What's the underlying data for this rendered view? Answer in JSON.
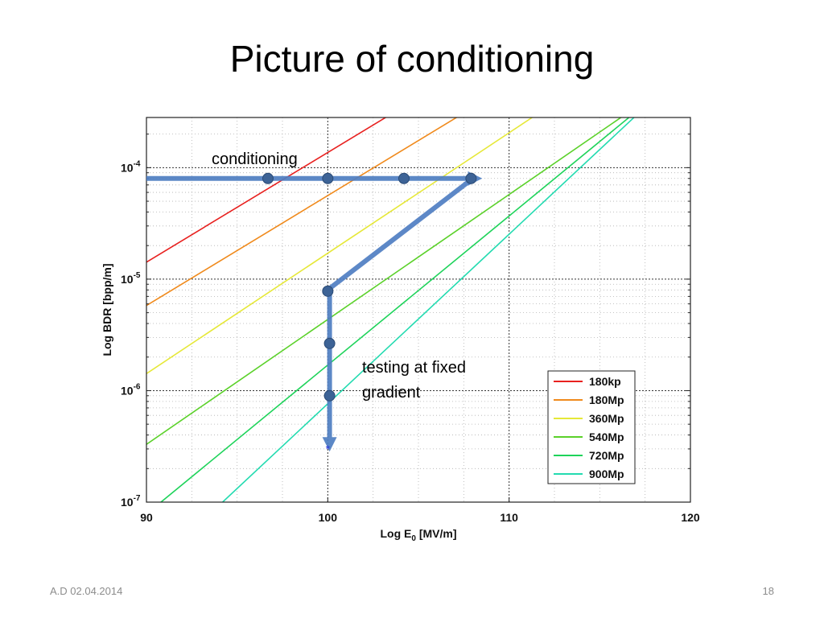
{
  "slide": {
    "title": "Picture of conditioning",
    "footer_left": "A.D 02.04.2014",
    "page_number": "18"
  },
  "chart_data": {
    "type": "line",
    "xlabel_base": "Log E",
    "xlabel_sub": "0",
    "xlabel_unit": " [MV/m]",
    "ylabel": "Log BDR [bpp/m]",
    "xlim": [
      90,
      120
    ],
    "ylim_exp": [
      -7,
      -3.55
    ],
    "log_y": true,
    "grid": true,
    "x_ticks": [
      90,
      100,
      110,
      120
    ],
    "y_ticks": [
      {
        "value": 0.0001,
        "base": "10",
        "exp": "-4"
      },
      {
        "value": 1e-05,
        "base": "10",
        "exp": "-5"
      },
      {
        "value": 1e-06,
        "base": "10",
        "exp": "-6"
      },
      {
        "value": 1e-07,
        "base": "10",
        "exp": "-7"
      }
    ],
    "legend_position": "bottom-right",
    "series": [
      {
        "name": "180kp",
        "color": "#e8211f",
        "points": [
          [
            90,
            1.42e-05
          ],
          [
            106.3,
            0.00057
          ]
        ]
      },
      {
        "name": "180Mp",
        "color": "#f08a1c",
        "points": [
          [
            90,
            5.8e-06
          ],
          [
            110.2,
            0.00057
          ]
        ]
      },
      {
        "name": "360Mp",
        "color": "#e6e838",
        "points": [
          [
            90,
            1.42e-06
          ],
          [
            114.1,
            0.00057
          ]
        ]
      },
      {
        "name": "540Mp",
        "color": "#5bd12a",
        "points": [
          [
            90,
            3.3e-07
          ],
          [
            118.9,
            0.00057
          ]
        ]
      },
      {
        "name": "720Mp",
        "color": "#1ed35a",
        "points": [
          [
            90.8,
            1e-07
          ],
          [
            118.9,
            0.00057
          ]
        ]
      },
      {
        "name": "900Mp",
        "color": "#23dbb0",
        "points": [
          [
            94.2,
            1e-07
          ],
          [
            118.9,
            0.00057
          ]
        ]
      }
    ],
    "annotations": {
      "conditioning_label": "conditioning",
      "testing_label_line1": "testing at fixed",
      "testing_label_line2": "gradient",
      "arrow_color": "#4f7ec2",
      "dot_color": "#3d6396",
      "conditioning_path": [
        [
          90,
          8e-05
        ],
        [
          108.2,
          8e-05
        ]
      ],
      "ramp_path": [
        [
          100,
          8e-06
        ],
        [
          108,
          8e-05
        ]
      ],
      "testing_path": [
        [
          100.1,
          8e-06
        ],
        [
          100.1,
          3.2e-07
        ]
      ],
      "dots": [
        [
          96.7,
          8e-05
        ],
        [
          100,
          8e-05
        ],
        [
          104.2,
          8e-05
        ],
        [
          107.9,
          8e-05
        ],
        [
          100,
          7.8e-06
        ],
        [
          100.1,
          2.65e-06
        ],
        [
          100.1,
          9e-07
        ]
      ],
      "star_point": [
        100,
        3e-07
      ]
    }
  }
}
